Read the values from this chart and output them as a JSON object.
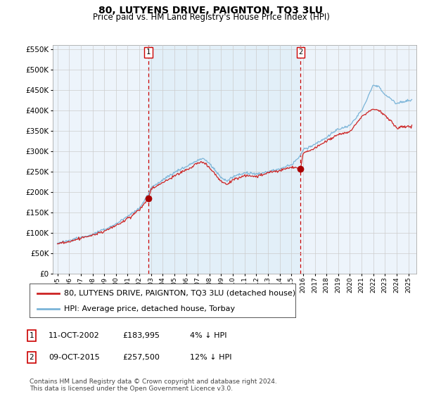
{
  "title": "80, LUTYENS DRIVE, PAIGNTON, TQ3 3LU",
  "subtitle": "Price paid vs. HM Land Registry's House Price Index (HPI)",
  "legend_line1": "80, LUTYENS DRIVE, PAIGNTON, TQ3 3LU (detached house)",
  "legend_line2": "HPI: Average price, detached house, Torbay",
  "footnote": "Contains HM Land Registry data © Crown copyright and database right 2024.\nThis data is licensed under the Open Government Licence v3.0.",
  "table": [
    {
      "num": "1",
      "date": "11-OCT-2002",
      "price": "£183,995",
      "change": "4% ↓ HPI"
    },
    {
      "num": "2",
      "date": "09-OCT-2015",
      "price": "£257,500",
      "change": "12% ↓ HPI"
    }
  ],
  "hpi_color": "#7ab4d8",
  "price_color": "#cc2222",
  "marker_color": "#aa0000",
  "vline_color": "#cc0000",
  "grid_color": "#cccccc",
  "background_color": "#ffffff",
  "plot_bg_color": "#edf4fb",
  "ylim": [
    0,
    560000
  ],
  "yticks": [
    0,
    50000,
    100000,
    150000,
    200000,
    250000,
    300000,
    350000,
    400000,
    450000,
    500000,
    550000
  ],
  "purchase1_year": 2002.79,
  "purchase1_price": 183995,
  "purchase2_year": 2015.79,
  "purchase2_price": 257500,
  "title_fontsize": 10,
  "subtitle_fontsize": 8.5,
  "tick_fontsize": 7.5,
  "legend_fontsize": 8,
  "table_fontsize": 8,
  "footnote_fontsize": 6.5
}
